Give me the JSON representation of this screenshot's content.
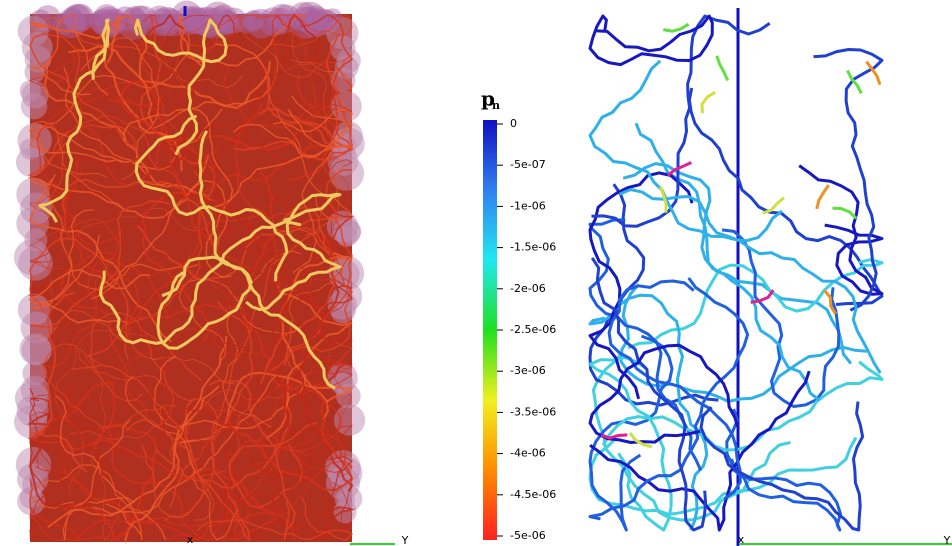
{
  "colorbar": {
    "title": "p",
    "subscript": "n",
    "range": [
      -5e-06,
      0
    ],
    "colormap": [
      "#ff2020",
      "#ff8c00",
      "#f0f020",
      "#20e020",
      "#20e8f0",
      "#3080f0",
      "#1010c0"
    ],
    "ticks": [
      0,
      {
        "value": -5e-07,
        "label": "-5e-07"
      },
      {
        "value": -1e-06,
        "label": "-1e-06"
      },
      {
        "value": -1.5e-06,
        "label": "-1.5e-06"
      },
      {
        "value": -2e-06,
        "label": "-2e-06"
      },
      {
        "value": -2.5e-06,
        "label": "-2.5e-06"
      },
      {
        "value": -3e-06,
        "label": "-3e-06"
      },
      {
        "value": -3.5e-06,
        "label": "-3.5e-06"
      },
      {
        "value": -4e-06,
        "label": "-4e-06"
      },
      {
        "value": -4.5e-06,
        "label": "-4.5e-06"
      },
      {
        "value": -5e-06,
        "label": "-5e-06"
      }
    ]
  },
  "left_view": {
    "axis_x": "x",
    "axis_y": "Y"
  },
  "right_view": {
    "axis_x": "x",
    "axis_y": "Y"
  }
}
